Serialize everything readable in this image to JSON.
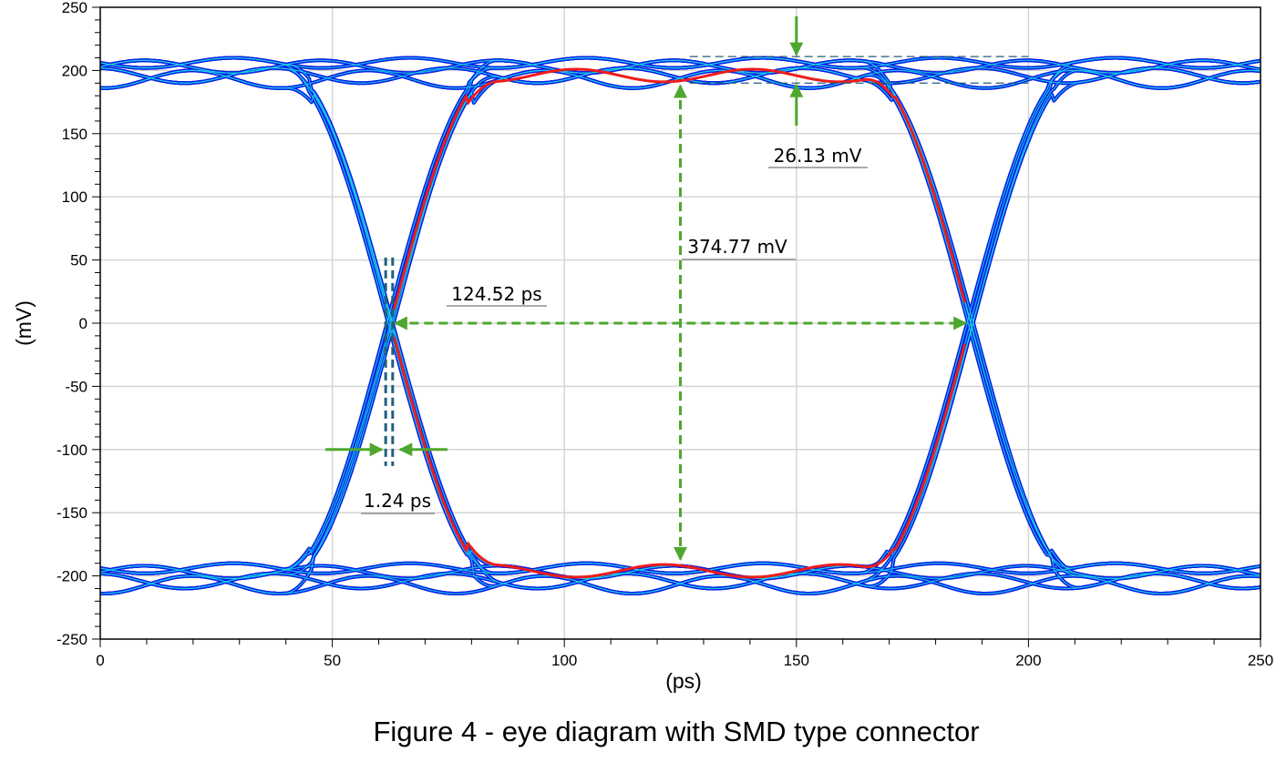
{
  "chart_data": {
    "type": "line",
    "subtype": "eye-diagram",
    "xlabel": "(ps)",
    "ylabel": "(mV)",
    "xlim": [
      0,
      250
    ],
    "ylim": [
      -250,
      250
    ],
    "xticks": [
      0,
      50,
      100,
      150,
      200,
      250
    ],
    "yticks": [
      250,
      200,
      150,
      100,
      50,
      0,
      -50,
      -100,
      -150,
      -200,
      -250
    ],
    "grid": true,
    "legend": "none",
    "signal": {
      "high_level_mV": 200,
      "low_level_mV": -200,
      "crossing_points_ps": [
        62.5,
        187.5
      ],
      "crossing_level_mV": 0,
      "unit_interval_ps": 125,
      "trace_color": "#0a1ee6",
      "density_color": "#19d6e6",
      "worst_case_color": "#ee1c1c"
    },
    "annotations": [
      {
        "label": "124.52 ps",
        "kind": "eye width",
        "from_ps": 63.5,
        "to_ps": 186.5,
        "at_mV": 0
      },
      {
        "label": "374.77 mV",
        "kind": "eye height",
        "at_ps": 125,
        "from_mV": 188,
        "to_mV": -187
      },
      {
        "label": "26.13 mV",
        "kind": "noise at top level",
        "at_ps": 150,
        "from_mV": 211,
        "to_mV": 190
      },
      {
        "label": "1.24 ps",
        "kind": "jitter at crossing",
        "from_ps": 61.5,
        "to_ps": 63.0
      }
    ],
    "annotation_color": "#4ea72e",
    "marker_line_color": "#1f5f7f"
  },
  "caption": "Figure 4 - eye diagram with SMD type connector"
}
